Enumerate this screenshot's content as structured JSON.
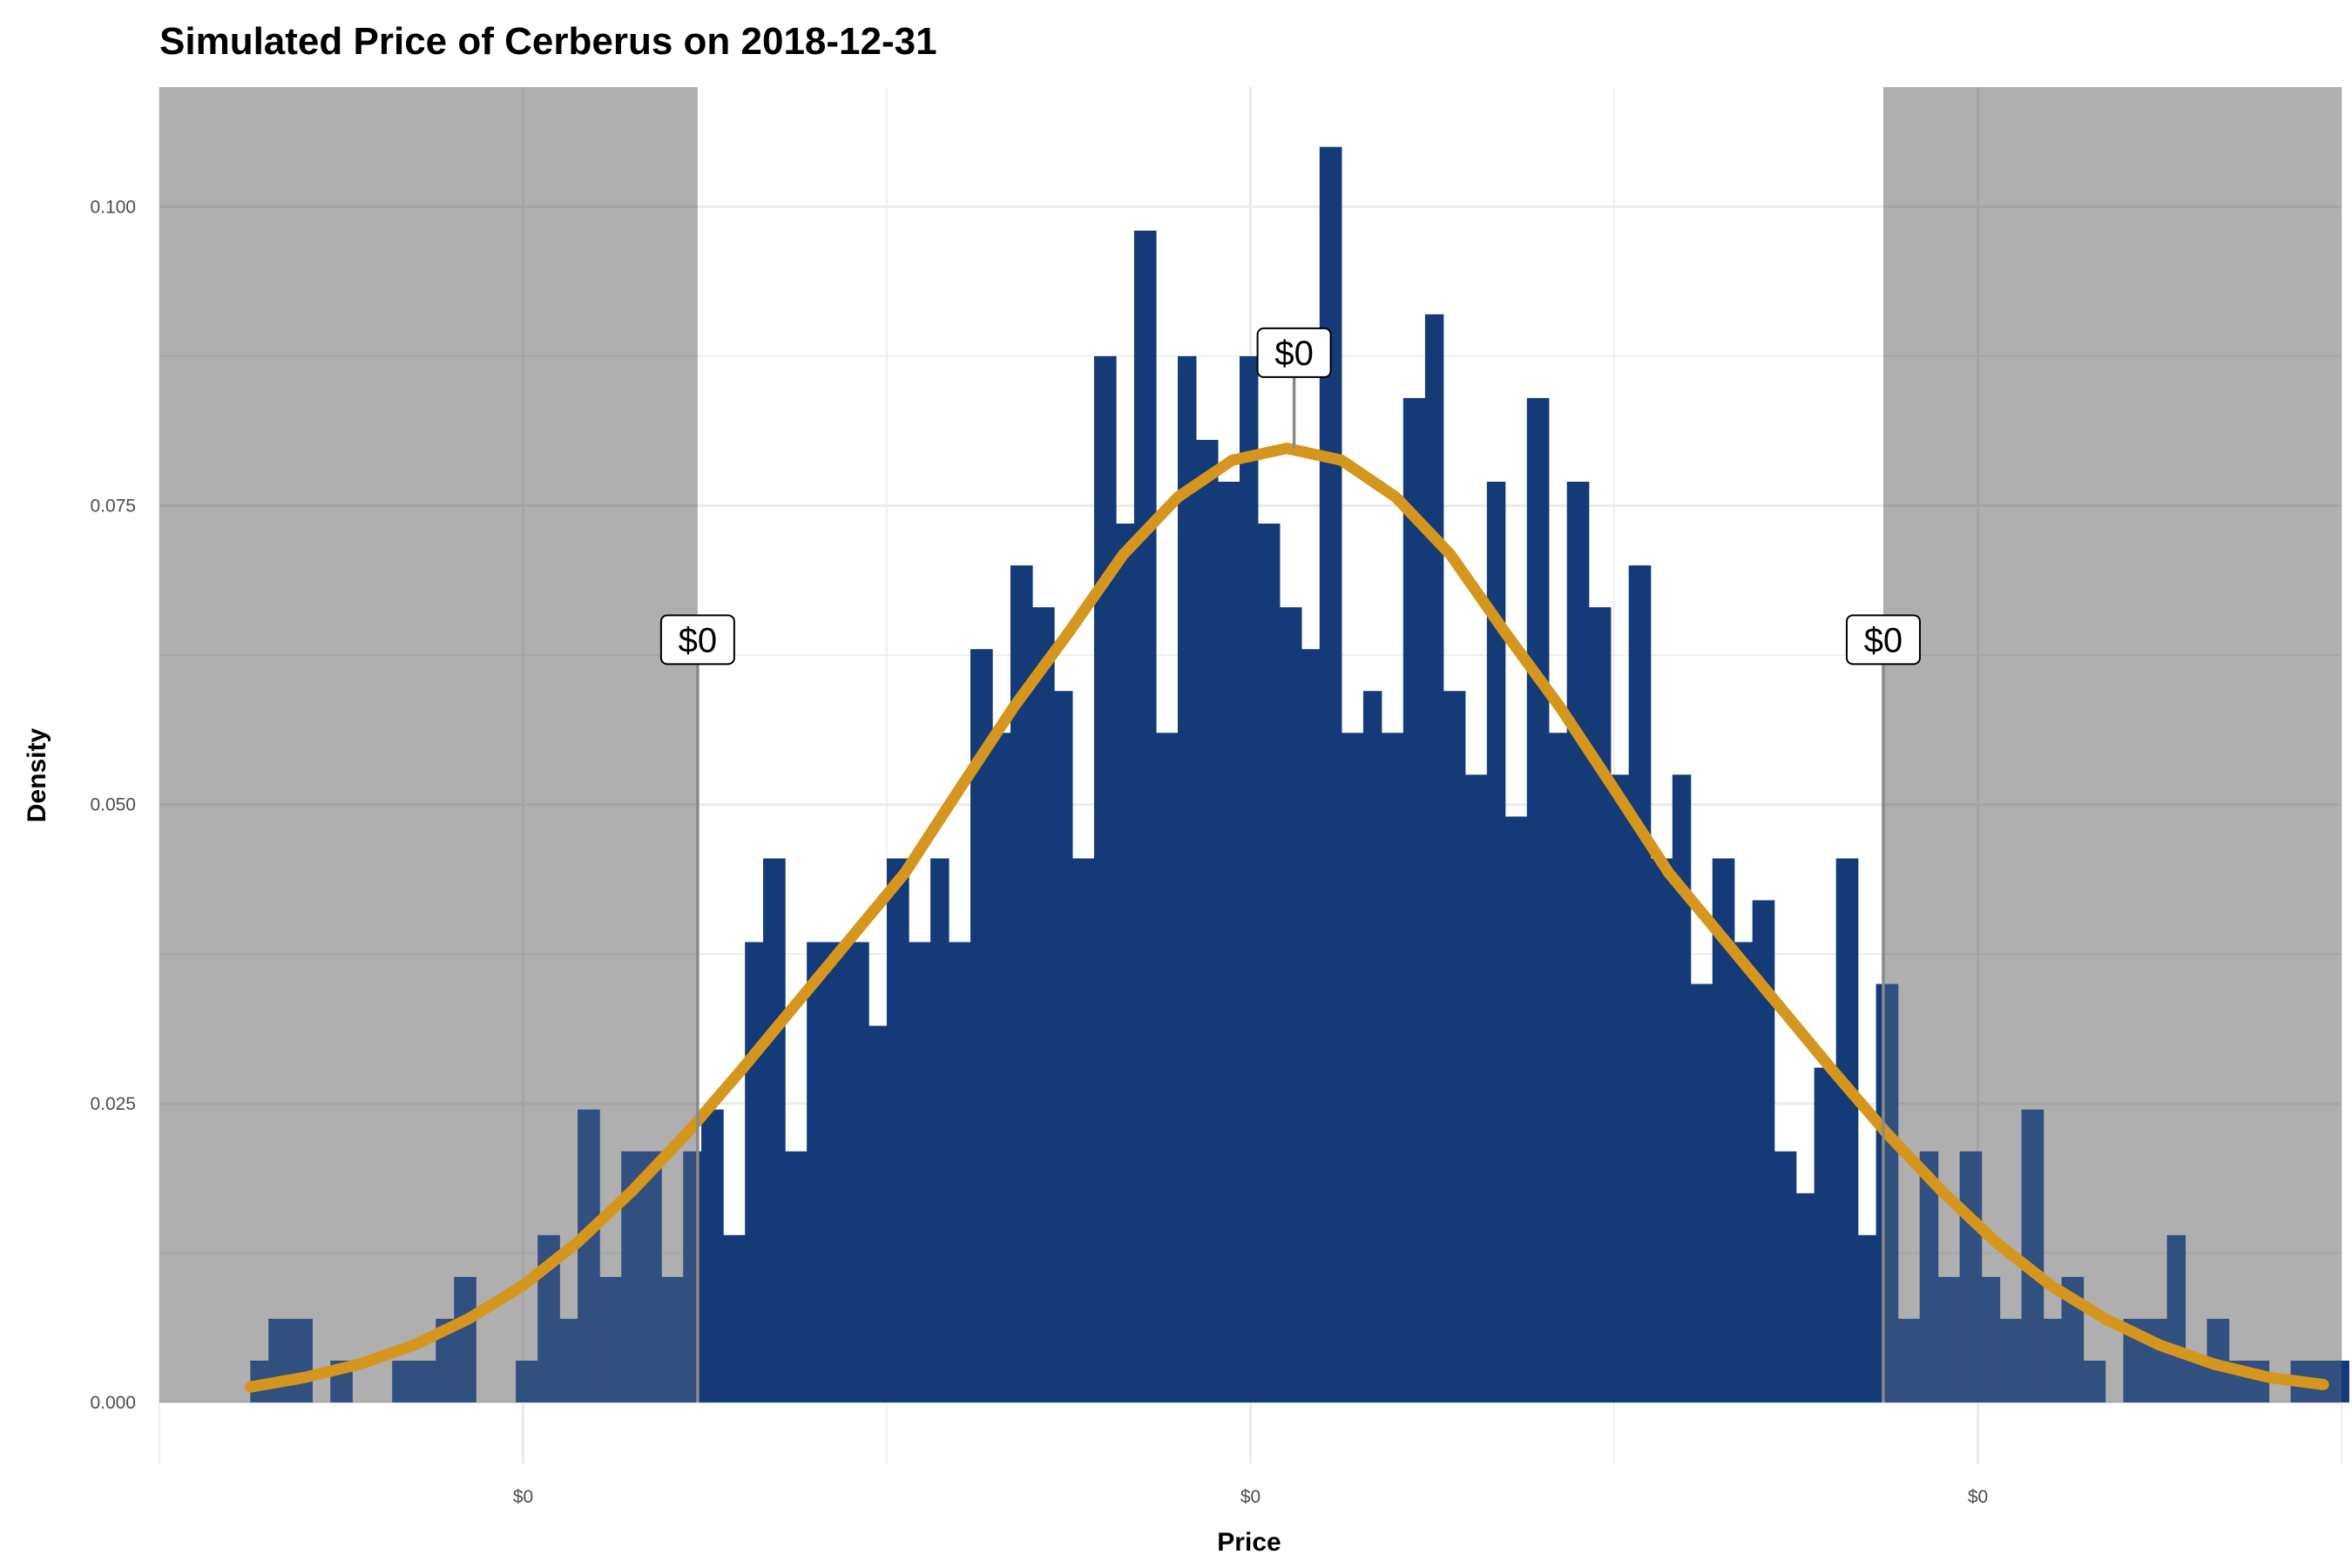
{
  "chart_data": {
    "type": "bar",
    "title": "Simulated Price of Cerberus on 2018-12-31",
    "xlabel": "Price",
    "ylabel": "Density",
    "ylim": [
      0,
      0.11
    ],
    "xlim": [
      -1.0,
      5.0
    ],
    "y_ticks": [
      0,
      0.025,
      0.05,
      0.075,
      0.1
    ],
    "y_tick_labels": [
      "0.000",
      "0.025",
      "0.050",
      "0.075",
      "0.100"
    ],
    "x_ticks": [
      0,
      2,
      4
    ],
    "x_tick_labels": [
      "$0",
      "$0",
      "$0"
    ],
    "grid": true,
    "shaded_tail_regions": [
      [
        -1.0,
        0.48
      ],
      [
        3.74,
        5.0
      ]
    ],
    "histogram": {
      "color": "#143a78",
      "bins": [
        [
          -0.75,
          -0.7,
          0.0035
        ],
        [
          -0.7,
          -0.64,
          0.007
        ],
        [
          -0.64,
          -0.58,
          0.007
        ],
        [
          -0.58,
          -0.53,
          0.0
        ],
        [
          -0.53,
          -0.47,
          0.0035
        ],
        [
          -0.47,
          -0.41,
          0.0
        ],
        [
          -0.41,
          -0.36,
          0.0
        ],
        [
          -0.36,
          -0.3,
          0.0035
        ],
        [
          -0.3,
          -0.24,
          0.0035
        ],
        [
          -0.24,
          -0.19,
          0.007
        ],
        [
          -0.19,
          -0.13,
          0.0105
        ],
        [
          -0.13,
          -0.07,
          0.0
        ],
        [
          -0.07,
          -0.02,
          0.0
        ],
        [
          -0.02,
          0.04,
          0.0035
        ],
        [
          0.04,
          0.1,
          0.014
        ],
        [
          0.1,
          0.15,
          0.007
        ],
        [
          0.15,
          0.21,
          0.0245
        ],
        [
          0.21,
          0.27,
          0.0105
        ],
        [
          0.27,
          0.32,
          0.021
        ],
        [
          0.32,
          0.38,
          0.021
        ],
        [
          0.38,
          0.44,
          0.0105
        ],
        [
          0.44,
          0.49,
          0.021
        ],
        [
          0.49,
          0.55,
          0.0245
        ],
        [
          0.55,
          0.61,
          0.014
        ],
        [
          0.61,
          0.66,
          0.0385
        ],
        [
          0.66,
          0.72,
          0.0455
        ],
        [
          0.72,
          0.78,
          0.021
        ],
        [
          0.78,
          0.83,
          0.0385
        ],
        [
          0.83,
          0.89,
          0.0385
        ],
        [
          0.89,
          0.95,
          0.0385
        ],
        [
          0.95,
          1.0,
          0.0315
        ],
        [
          1.0,
          1.06,
          0.0455
        ],
        [
          1.06,
          1.12,
          0.0385
        ],
        [
          1.12,
          1.17,
          0.0455
        ],
        [
          1.17,
          1.23,
          0.0385
        ],
        [
          1.23,
          1.29,
          0.063
        ],
        [
          1.29,
          1.34,
          0.056
        ],
        [
          1.34,
          1.4,
          0.07
        ],
        [
          1.4,
          1.46,
          0.0665
        ],
        [
          1.46,
          1.51,
          0.0595
        ],
        [
          1.51,
          1.57,
          0.0455
        ],
        [
          1.57,
          1.63,
          0.0875
        ],
        [
          1.63,
          1.68,
          0.0735
        ],
        [
          1.68,
          1.74,
          0.098
        ],
        [
          1.74,
          1.8,
          0.056
        ],
        [
          1.8,
          1.85,
          0.0875
        ],
        [
          1.85,
          1.91,
          0.0805
        ],
        [
          1.91,
          1.97,
          0.077
        ],
        [
          1.97,
          2.02,
          0.0875
        ],
        [
          2.02,
          2.08,
          0.0735
        ],
        [
          2.08,
          2.14,
          0.0665
        ],
        [
          2.14,
          2.19,
          0.063
        ],
        [
          2.19,
          2.25,
          0.105
        ],
        [
          2.25,
          2.31,
          0.056
        ],
        [
          2.31,
          2.36,
          0.0595
        ],
        [
          2.36,
          2.42,
          0.056
        ],
        [
          2.42,
          2.48,
          0.084
        ],
        [
          2.48,
          2.53,
          0.091
        ],
        [
          2.53,
          2.59,
          0.0595
        ],
        [
          2.59,
          2.65,
          0.0525
        ],
        [
          2.65,
          2.7,
          0.077
        ],
        [
          2.7,
          2.76,
          0.049
        ],
        [
          2.76,
          2.82,
          0.084
        ],
        [
          2.82,
          2.87,
          0.056
        ],
        [
          2.87,
          2.93,
          0.077
        ],
        [
          2.93,
          2.99,
          0.0665
        ],
        [
          2.99,
          3.04,
          0.0525
        ],
        [
          3.04,
          3.1,
          0.07
        ],
        [
          3.1,
          3.16,
          0.0455
        ],
        [
          3.16,
          3.21,
          0.0525
        ],
        [
          3.21,
          3.27,
          0.035
        ],
        [
          3.27,
          3.33,
          0.0455
        ],
        [
          3.33,
          3.38,
          0.0385
        ],
        [
          3.38,
          3.44,
          0.042
        ],
        [
          3.44,
          3.5,
          0.021
        ],
        [
          3.5,
          3.55,
          0.0175
        ],
        [
          3.55,
          3.61,
          0.028
        ],
        [
          3.61,
          3.67,
          0.0455
        ],
        [
          3.67,
          3.72,
          0.014
        ],
        [
          3.72,
          3.78,
          0.035
        ],
        [
          3.78,
          3.84,
          0.007
        ],
        [
          3.84,
          3.89,
          0.021
        ],
        [
          3.89,
          3.95,
          0.0105
        ],
        [
          3.95,
          4.01,
          0.021
        ],
        [
          4.01,
          4.06,
          0.0105
        ],
        [
          4.06,
          4.12,
          0.007
        ],
        [
          4.12,
          4.18,
          0.0245
        ],
        [
          4.18,
          4.23,
          0.007
        ],
        [
          4.23,
          4.29,
          0.0105
        ],
        [
          4.29,
          4.35,
          0.0035
        ],
        [
          4.35,
          4.4,
          0.0
        ],
        [
          4.4,
          4.46,
          0.007
        ],
        [
          4.46,
          4.52,
          0.007
        ],
        [
          4.52,
          4.57,
          0.014
        ],
        [
          4.57,
          4.63,
          0.0035
        ],
        [
          4.63,
          4.69,
          0.007
        ],
        [
          4.69,
          4.74,
          0.0035
        ],
        [
          4.74,
          4.8,
          0.0035
        ],
        [
          4.8,
          4.86,
          0.0
        ],
        [
          4.86,
          4.91,
          0.0035
        ],
        [
          4.91,
          4.97,
          0.0035
        ],
        [
          4.97,
          5.02,
          0.0035
        ]
      ]
    },
    "normal_curve": {
      "color": "#d4961e",
      "mean": 2.1,
      "sd": 0.5,
      "x": [
        -0.75,
        -0.6,
        -0.45,
        -0.3,
        -0.15,
        0.0,
        0.15,
        0.3,
        0.45,
        0.6,
        0.75,
        0.9,
        1.05,
        1.2,
        1.35,
        1.5,
        1.65,
        1.8,
        1.95,
        2.1,
        2.25,
        2.4,
        2.55,
        2.7,
        2.85,
        3.0,
        3.15,
        3.3,
        3.45,
        3.6,
        3.75,
        3.9,
        4.05,
        4.2,
        4.35,
        4.5,
        4.65,
        4.8,
        4.95
      ],
      "y": [
        0.0013,
        0.0021,
        0.0032,
        0.0048,
        0.007,
        0.0098,
        0.0134,
        0.0177,
        0.0225,
        0.0278,
        0.0333,
        0.0388,
        0.0443,
        0.0513,
        0.0582,
        0.0644,
        0.0709,
        0.0757,
        0.0788,
        0.0798,
        0.0788,
        0.0757,
        0.0709,
        0.0644,
        0.0582,
        0.0513,
        0.0443,
        0.0388,
        0.0333,
        0.0278,
        0.0225,
        0.0177,
        0.0134,
        0.0098,
        0.007,
        0.0048,
        0.0032,
        0.0021,
        0.0015
      ]
    },
    "annotations": [
      {
        "label": "$0",
        "x": 0.48,
        "y": 0.0635
      },
      {
        "label": "$0",
        "x": 2.12,
        "y": 0.0875
      },
      {
        "label": "$0",
        "x": 3.74,
        "y": 0.0635
      }
    ]
  }
}
